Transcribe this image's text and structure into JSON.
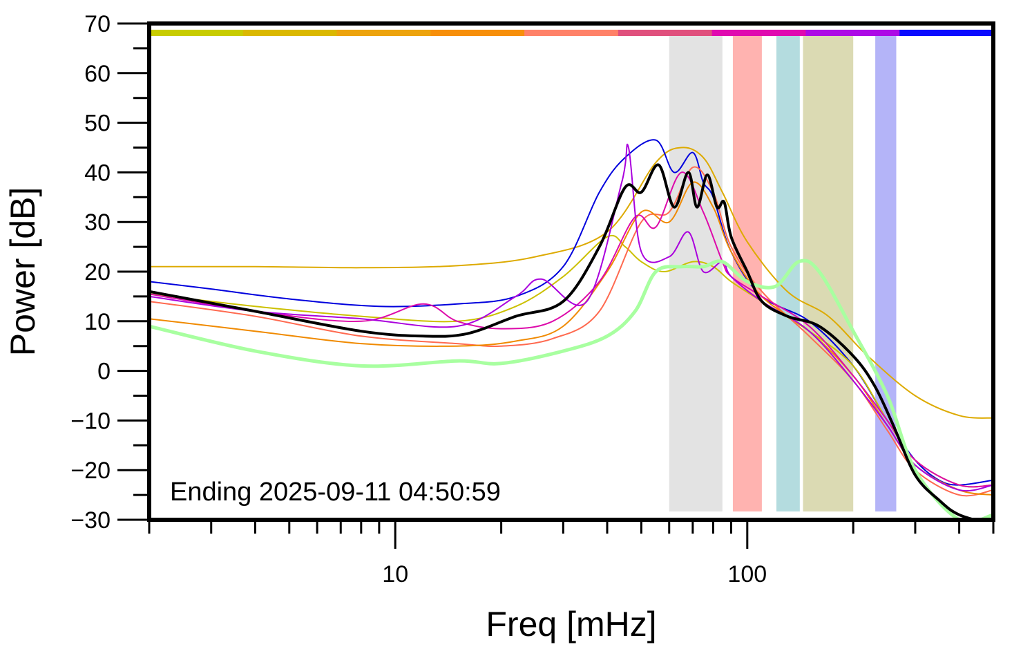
{
  "chart_data": {
    "type": "line",
    "xlabel": "Freq [mHz]",
    "ylabel": "Power [dB]",
    "annotation": "Ending 2025-09-11 04:50:59",
    "xscale": "log",
    "xlim": [
      2,
      500
    ],
    "ylim": [
      -30,
      70
    ],
    "xticks": [
      10,
      100
    ],
    "xtick_labels": [
      "10",
      "100"
    ],
    "yticks": [
      -30,
      -20,
      -10,
      0,
      10,
      20,
      30,
      40,
      50,
      60,
      70
    ],
    "ytick_labels": [
      "−30",
      "−20",
      "−10",
      "0",
      "10",
      "20",
      "30",
      "40",
      "50",
      "60",
      "70"
    ],
    "bands": [
      {
        "x0": 60,
        "x1": 85,
        "color": "#e3e3e3"
      },
      {
        "x0": 91,
        "x1": 110,
        "color": "#ffb3b0"
      },
      {
        "x0": 121,
        "x1": 141,
        "color": "#b4dcdf"
      },
      {
        "x0": 144,
        "x1": 200,
        "color": "#dbdab3"
      },
      {
        "x0": 231,
        "x1": 265,
        "color": "#b4b4f8"
      }
    ],
    "time_bar": [
      "#c8cc00",
      "#dbb800",
      "#eda30d",
      "#f78f0a",
      "#ff8168",
      "#e0507d",
      "#e00ab0",
      "#ad0ae6",
      "#0a0aff"
    ],
    "series": [
      {
        "color": "#ddaa00",
        "width": 2,
        "x": [
          2,
          4,
          8,
          15,
          25,
          40,
          55,
          65,
          75,
          85,
          100,
          130,
          170,
          220,
          300,
          400,
          500
        ],
        "y": [
          21,
          21,
          20.8,
          21.2,
          23,
          28,
          42,
          45,
          43,
          36,
          26,
          16,
          11,
          3,
          -5,
          -9,
          -9.5
        ]
      },
      {
        "color": "#0000dd",
        "width": 2,
        "x": [
          2,
          3,
          5,
          9,
          15,
          22,
          30,
          38,
          45,
          55,
          62,
          70,
          75,
          80,
          90,
          110,
          150,
          200,
          250,
          300,
          350,
          400,
          500
        ],
        "y": [
          18,
          16.5,
          14.5,
          13,
          13.5,
          15,
          21,
          36,
          43,
          46.5,
          40,
          44,
          38,
          35,
          24,
          15,
          10,
          1,
          -10,
          -18,
          -22,
          -23,
          -22
        ]
      },
      {
        "color": "#ccc000",
        "width": 2,
        "x": [
          2,
          4,
          8,
          15,
          22,
          30,
          40,
          45,
          50,
          58,
          70,
          80,
          90,
          110,
          150,
          200,
          250,
          300,
          400,
          500
        ],
        "y": [
          15.5,
          13,
          11,
          10,
          13,
          19,
          27,
          25,
          22,
          20,
          22,
          21,
          18,
          14,
          8,
          1,
          -10,
          -18,
          -23,
          -23
        ]
      },
      {
        "color": "#ff6a50",
        "width": 2,
        "x": [
          2,
          4,
          8,
          15,
          20,
          28,
          38,
          50,
          60,
          70,
          80,
          90,
          110,
          150,
          200,
          250,
          300,
          400,
          500
        ],
        "y": [
          14,
          11,
          7,
          5.5,
          5,
          6.5,
          12,
          30,
          32,
          41,
          36,
          25,
          16,
          7,
          -2,
          -12,
          -20,
          -25,
          -24
        ]
      },
      {
        "color": "#f08a00",
        "width": 2,
        "x": [
          2,
          4,
          8,
          15,
          22,
          30,
          40,
          50,
          60,
          70,
          80,
          90,
          110,
          150,
          200,
          250,
          300,
          400,
          500
        ],
        "y": [
          10.5,
          8,
          5.5,
          5,
          6,
          9,
          20,
          32,
          30,
          38,
          33,
          24,
          15,
          8,
          -1,
          -11,
          -19,
          -24,
          -25
        ]
      },
      {
        "color": "#dd0aaa",
        "width": 2,
        "x": [
          2,
          4,
          8,
          12,
          15,
          20,
          28,
          38,
          48,
          55,
          65,
          75,
          85,
          90,
          110,
          150,
          200,
          250,
          300,
          400,
          500
        ],
        "y": [
          15.5,
          12,
          10,
          13.5,
          10,
          8.5,
          10,
          18,
          31,
          29,
          40,
          32,
          22,
          19,
          15,
          9,
          -1,
          -10,
          -18,
          -23,
          -23
        ]
      },
      {
        "color": "#aa00dd",
        "width": 2,
        "x": [
          2,
          4,
          8,
          15,
          22,
          26,
          35,
          44,
          46,
          50,
          60,
          68,
          75,
          85,
          90,
          110,
          150,
          200,
          250,
          300,
          400,
          500
        ],
        "y": [
          15,
          12,
          10.5,
          9,
          15,
          18.5,
          14,
          38,
          45,
          24,
          23,
          28,
          20,
          22,
          19,
          14,
          8,
          -2,
          -11,
          -19,
          -24,
          -23
        ]
      },
      {
        "color": "#a8ffa0",
        "width": 5,
        "x": [
          2,
          4,
          8,
          15,
          20,
          30,
          40,
          48,
          55,
          65,
          75,
          85,
          100,
          120,
          140,
          160,
          200,
          250,
          300,
          400,
          500
        ],
        "y": [
          9,
          4,
          1,
          2,
          1.5,
          4,
          7,
          12,
          20,
          21,
          21,
          22,
          18,
          17,
          22,
          20,
          8,
          -5,
          -20,
          -30,
          -29
        ]
      },
      {
        "color": "#000000",
        "width": 4,
        "x": [
          2,
          4,
          8,
          12,
          16,
          22,
          30,
          38,
          45,
          50,
          56,
          62,
          68,
          72,
          77,
          82,
          86,
          90,
          100,
          110,
          130,
          160,
          200,
          230,
          260,
          300,
          350,
          400,
          500
        ],
        "y": [
          16,
          12,
          8,
          7,
          7.5,
          11,
          14,
          25,
          37,
          36,
          41.5,
          33,
          40,
          33,
          39.5,
          33,
          34,
          27,
          20,
          14,
          11,
          9,
          3,
          -3,
          -11,
          -21,
          -26,
          -29,
          -31
        ]
      }
    ]
  }
}
